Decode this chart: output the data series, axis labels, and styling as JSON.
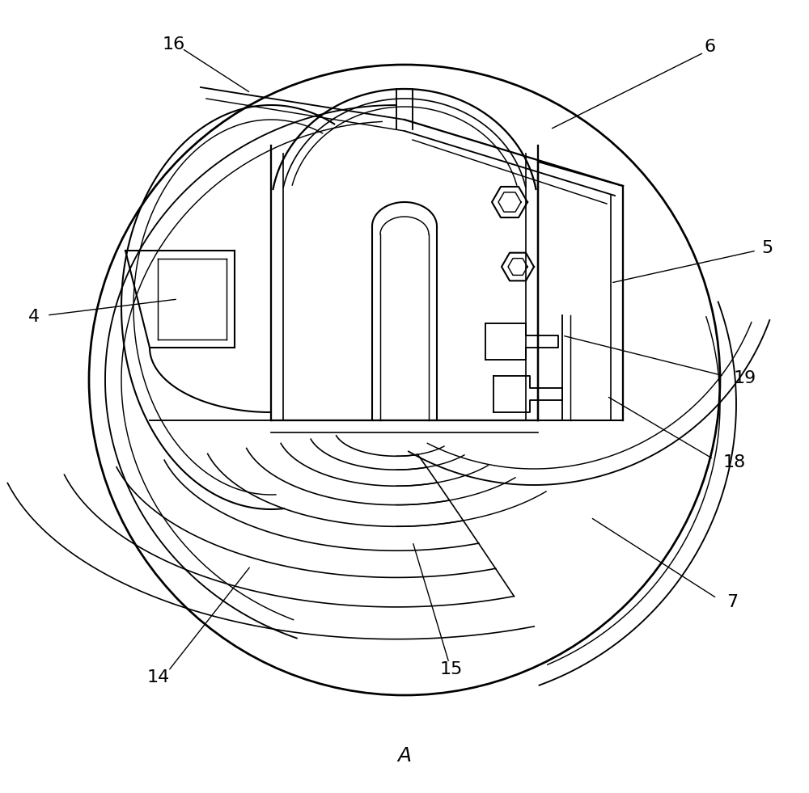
{
  "bg_color": "#ffffff",
  "line_color": "#000000",
  "figsize": [
    10.0,
    9.81
  ],
  "label_A": "A",
  "dpi": 100
}
